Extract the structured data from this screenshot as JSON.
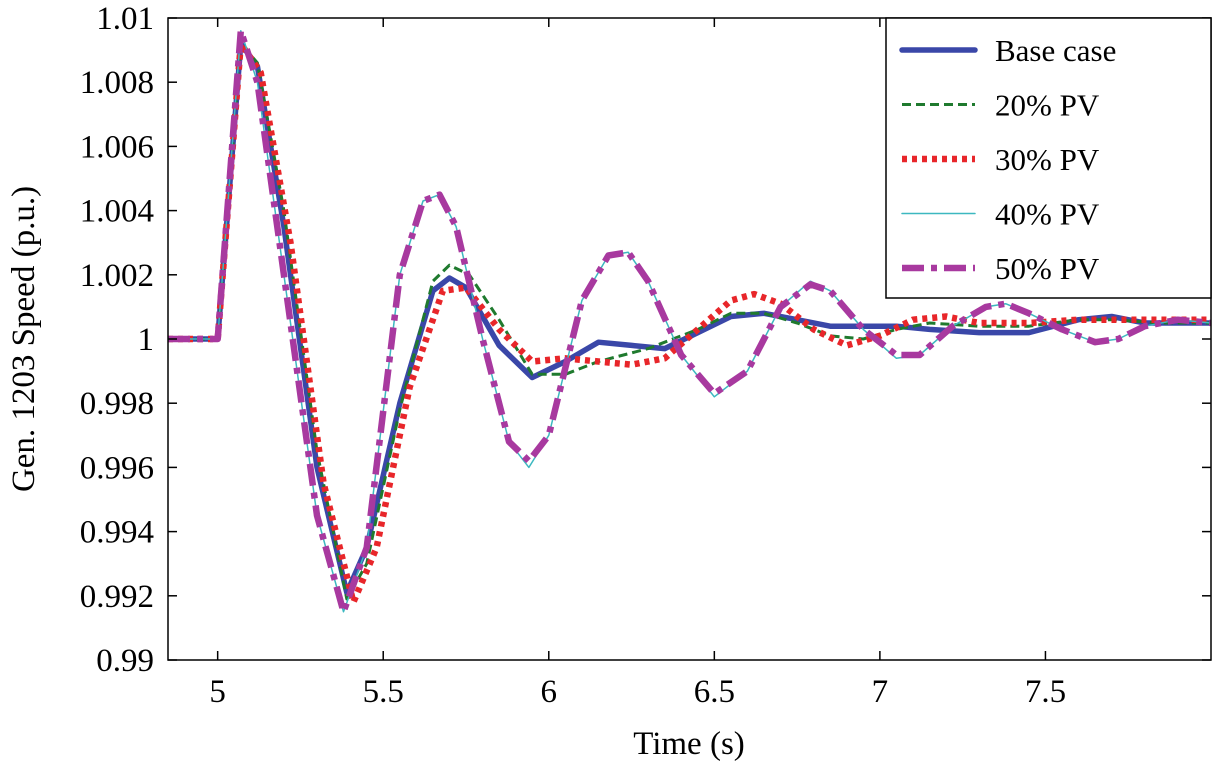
{
  "chart_data": {
    "type": "line",
    "title": "",
    "xlabel": "Time (s)",
    "ylabel": "Gen. 1203 Speed (p.u.)",
    "xlim": [
      4.85,
      8.0
    ],
    "ylim": [
      0.99,
      1.01
    ],
    "grid": false,
    "legend_position": "top-right",
    "x_ticks": [
      5,
      5.5,
      6,
      6.5,
      7,
      7.5
    ],
    "x_tick_labels": [
      "5",
      "5.5",
      "6",
      "6.5",
      "7",
      "7.5"
    ],
    "y_ticks": [
      0.99,
      0.992,
      0.994,
      0.996,
      0.998,
      1.0,
      1.002,
      1.004,
      1.006,
      1.008,
      1.01
    ],
    "y_tick_labels": [
      "0.99",
      "0.992",
      "0.994",
      "0.996",
      "0.998",
      "1",
      "1.002",
      "1.004",
      "1.006",
      "1.008",
      "1.01"
    ],
    "series": [
      {
        "name": "Base case",
        "color": "#3a47a8",
        "style": "solid-thick",
        "points": [
          [
            4.85,
            1.0
          ],
          [
            5.0,
            1.0
          ],
          [
            5.07,
            1.0092
          ],
          [
            5.12,
            1.0085
          ],
          [
            5.2,
            1.0035
          ],
          [
            5.3,
            0.996
          ],
          [
            5.39,
            0.9921
          ],
          [
            5.45,
            0.9935
          ],
          [
            5.55,
            0.998
          ],
          [
            5.65,
            1.0015
          ],
          [
            5.7,
            1.0019
          ],
          [
            5.75,
            1.0016
          ],
          [
            5.85,
            0.9998
          ],
          [
            5.95,
            0.9988
          ],
          [
            6.05,
            0.9993
          ],
          [
            6.15,
            0.9999
          ],
          [
            6.25,
            0.9998
          ],
          [
            6.35,
            0.9997
          ],
          [
            6.45,
            1.0002
          ],
          [
            6.55,
            1.0007
          ],
          [
            6.65,
            1.0008
          ],
          [
            6.75,
            1.0006
          ],
          [
            6.85,
            1.0004
          ],
          [
            6.95,
            1.0004
          ],
          [
            7.05,
            1.0004
          ],
          [
            7.15,
            1.0003
          ],
          [
            7.3,
            1.0002
          ],
          [
            7.45,
            1.0002
          ],
          [
            7.6,
            1.0006
          ],
          [
            7.7,
            1.0007
          ],
          [
            7.8,
            1.0005
          ],
          [
            7.9,
            1.0005
          ],
          [
            8.0,
            1.0005
          ]
        ]
      },
      {
        "name": "20% PV",
        "color": "#1f7a2e",
        "style": "dashed",
        "points": [
          [
            4.85,
            1.0
          ],
          [
            5.0,
            1.0
          ],
          [
            5.07,
            1.0092
          ],
          [
            5.12,
            1.0086
          ],
          [
            5.2,
            1.004
          ],
          [
            5.3,
            0.9965
          ],
          [
            5.39,
            0.9919
          ],
          [
            5.45,
            0.993
          ],
          [
            5.55,
            0.9978
          ],
          [
            5.65,
            1.0018
          ],
          [
            5.7,
            1.0023
          ],
          [
            5.76,
            1.002
          ],
          [
            5.85,
            1.0006
          ],
          [
            5.95,
            0.9989
          ],
          [
            6.05,
            0.9989
          ],
          [
            6.15,
            0.9993
          ],
          [
            6.3,
            0.9997
          ],
          [
            6.45,
            1.0003
          ],
          [
            6.55,
            1.0008
          ],
          [
            6.65,
            1.0008
          ],
          [
            6.75,
            1.0005
          ],
          [
            6.85,
            1.0001
          ],
          [
            6.95,
            1.0
          ],
          [
            7.05,
            1.0003
          ],
          [
            7.15,
            1.0005
          ],
          [
            7.3,
            1.0004
          ],
          [
            7.45,
            1.0004
          ],
          [
            7.6,
            1.0006
          ],
          [
            7.7,
            1.0006
          ],
          [
            7.85,
            1.0005
          ],
          [
            8.0,
            1.0005
          ]
        ]
      },
      {
        "name": "30% PV",
        "color": "#e8262a",
        "style": "dotted-thick",
        "points": [
          [
            4.85,
            1.0
          ],
          [
            5.0,
            1.0
          ],
          [
            5.07,
            1.0092
          ],
          [
            5.13,
            1.0083
          ],
          [
            5.22,
            1.003
          ],
          [
            5.32,
            0.9955
          ],
          [
            5.41,
            0.9918
          ],
          [
            5.48,
            0.9935
          ],
          [
            5.58,
            0.9985
          ],
          [
            5.68,
            1.0015
          ],
          [
            5.75,
            1.0016
          ],
          [
            5.85,
            1.0003
          ],
          [
            5.95,
            0.9993
          ],
          [
            6.05,
            0.9994
          ],
          [
            6.15,
            0.9993
          ],
          [
            6.25,
            0.9992
          ],
          [
            6.35,
            0.9994
          ],
          [
            6.45,
            1.0003
          ],
          [
            6.55,
            1.0012
          ],
          [
            6.62,
            1.0014
          ],
          [
            6.7,
            1.0011
          ],
          [
            6.8,
            1.0003
          ],
          [
            6.9,
            0.9998
          ],
          [
            7.0,
            1.0001
          ],
          [
            7.1,
            1.0006
          ],
          [
            7.2,
            1.0007
          ],
          [
            7.3,
            1.0005
          ],
          [
            7.45,
            1.0005
          ],
          [
            7.6,
            1.0006
          ],
          [
            7.75,
            1.0006
          ],
          [
            8.0,
            1.0006
          ]
        ]
      },
      {
        "name": "40% PV",
        "color": "#3cb8c0",
        "style": "solid-thin",
        "points": [
          [
            4.85,
            1.0
          ],
          [
            5.0,
            1.0
          ],
          [
            5.07,
            1.0096
          ],
          [
            5.12,
            1.008
          ],
          [
            5.2,
            1.002
          ],
          [
            5.3,
            0.9945
          ],
          [
            5.38,
            0.9915
          ],
          [
            5.45,
            0.9935
          ],
          [
            5.55,
            1.002
          ],
          [
            5.62,
            1.0043
          ],
          [
            5.67,
            1.0045
          ],
          [
            5.72,
            1.0035
          ],
          [
            5.8,
            1.0
          ],
          [
            5.88,
            0.9968
          ],
          [
            5.94,
            0.996
          ],
          [
            6.0,
            0.997
          ],
          [
            6.1,
            1.0012
          ],
          [
            6.18,
            1.0026
          ],
          [
            6.24,
            1.0027
          ],
          [
            6.3,
            1.0018
          ],
          [
            6.4,
            0.9995
          ],
          [
            6.5,
            0.9982
          ],
          [
            6.6,
            0.999
          ],
          [
            6.7,
            1.001
          ],
          [
            6.79,
            1.0018
          ],
          [
            6.85,
            1.0015
          ],
          [
            6.95,
            1.0003
          ],
          [
            7.05,
            0.9994
          ],
          [
            7.12,
            0.9995
          ],
          [
            7.22,
            1.0004
          ],
          [
            7.32,
            1.001
          ],
          [
            7.38,
            1.0011
          ],
          [
            7.45,
            1.0008
          ],
          [
            7.55,
            1.0003
          ],
          [
            7.65,
            0.9999
          ],
          [
            7.72,
            1.0
          ],
          [
            7.8,
            1.0004
          ],
          [
            7.9,
            1.0006
          ],
          [
            8.0,
            1.0005
          ]
        ]
      },
      {
        "name": "50% PV",
        "color": "#a8399f",
        "style": "dashdot-thick",
        "points": [
          [
            4.85,
            1.0
          ],
          [
            5.0,
            1.0
          ],
          [
            5.07,
            1.0096
          ],
          [
            5.12,
            1.008
          ],
          [
            5.2,
            1.002
          ],
          [
            5.3,
            0.9945
          ],
          [
            5.38,
            0.9915
          ],
          [
            5.45,
            0.9935
          ],
          [
            5.55,
            1.002
          ],
          [
            5.62,
            1.0043
          ],
          [
            5.67,
            1.0045
          ],
          [
            5.72,
            1.0035
          ],
          [
            5.8,
            1.0
          ],
          [
            5.88,
            0.9968
          ],
          [
            5.94,
            0.9962
          ],
          [
            6.0,
            0.997
          ],
          [
            6.1,
            1.0012
          ],
          [
            6.18,
            1.0026
          ],
          [
            6.24,
            1.0027
          ],
          [
            6.3,
            1.0018
          ],
          [
            6.4,
            0.9995
          ],
          [
            6.5,
            0.9983
          ],
          [
            6.6,
            0.999
          ],
          [
            6.7,
            1.001
          ],
          [
            6.79,
            1.0017
          ],
          [
            6.85,
            1.0015
          ],
          [
            6.95,
            1.0003
          ],
          [
            7.05,
            0.9995
          ],
          [
            7.12,
            0.9995
          ],
          [
            7.22,
            1.0004
          ],
          [
            7.32,
            1.001
          ],
          [
            7.38,
            1.0011
          ],
          [
            7.45,
            1.0008
          ],
          [
            7.55,
            1.0003
          ],
          [
            7.65,
            0.9999
          ],
          [
            7.72,
            1.0
          ],
          [
            7.8,
            1.0004
          ],
          [
            7.9,
            1.0006
          ],
          [
            8.0,
            1.0005
          ]
        ]
      }
    ]
  }
}
